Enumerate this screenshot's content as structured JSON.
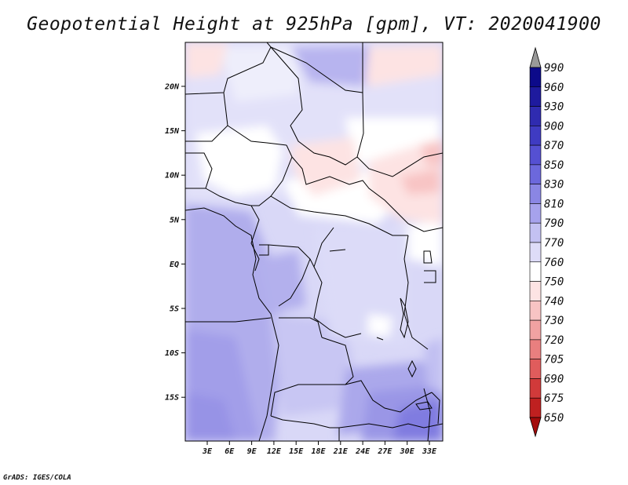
{
  "title": "Geopotential Height at 925hPa [gpm], VT: 2020041900",
  "credit": "GrADS: IGES/COLA",
  "map": {
    "region": "Central Africa",
    "lat_labels": [
      "20N",
      "15N",
      "10N",
      "5N",
      "EQ",
      "5S",
      "10S",
      "15S"
    ],
    "lon_labels": [
      "3E",
      "6E",
      "9E",
      "12E",
      "15E",
      "18E",
      "21E",
      "24E",
      "27E",
      "30E",
      "33E"
    ]
  },
  "colorbar": {
    "levels": [
      "990",
      "960",
      "930",
      "900",
      "870",
      "850",
      "830",
      "810",
      "790",
      "770",
      "760",
      "750",
      "740",
      "730",
      "720",
      "705",
      "690",
      "675",
      "650"
    ],
    "colors": [
      "#0c0a8a",
      "#1e1a9e",
      "#2f2bb0",
      "#3f3bc2",
      "#5550d2",
      "#6c68dc",
      "#8a86e4",
      "#a6a2ec",
      "#c3c1f2",
      "#dedcf8",
      "#ffffff",
      "#fde3e3",
      "#f8c4c4",
      "#f1a2a2",
      "#e97f7f",
      "#e05c5c",
      "#d13a3a",
      "#bf2020",
      "#a30c0c"
    ],
    "arrow_top": "#999999",
    "arrow_bottom": "#a30c0c"
  }
}
